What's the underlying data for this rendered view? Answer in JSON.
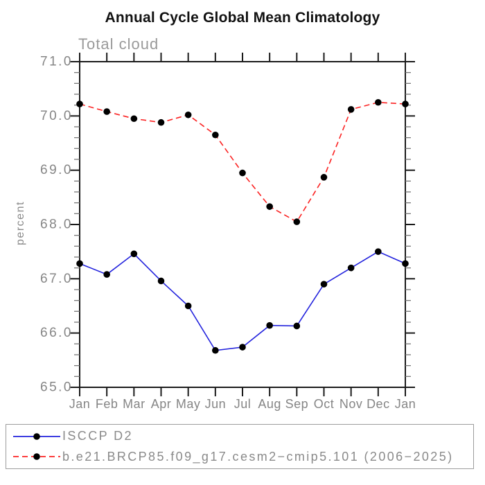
{
  "title": "Annual Cycle Global Mean Climatology",
  "subtitle": "Total cloud",
  "colors": {
    "axis": "#1a1a1a",
    "minor_tick": "#777777",
    "axis_label_gray": "#858585",
    "subtitle_gray": "#9a9a9a",
    "legend_border": "#9c9c9c",
    "marker": "#000000",
    "series1_blue": "#2222dd",
    "series2_red": "#fb2222"
  },
  "chart_data": {
    "type": "line",
    "title": "Annual Cycle Global Mean Climatology",
    "subtitle": "Total cloud",
    "xlabel": "",
    "ylabel": "percent",
    "categories": [
      "Jan",
      "Feb",
      "Mar",
      "Apr",
      "May",
      "Jun",
      "Jul",
      "Aug",
      "Sep",
      "Oct",
      "Nov",
      "Dec",
      "Jan"
    ],
    "ylim": [
      65.0,
      71.0
    ],
    "ytick_step": 1.0,
    "yminor_step": 0.2,
    "ytick_format_decimals": 1,
    "grid": false,
    "legend_position": "bottom",
    "series": [
      {
        "name": "ISCCP D2",
        "color": "#2222dd",
        "style": "solid",
        "marker": "filled-circle",
        "values": [
          67.28,
          67.08,
          67.46,
          66.96,
          66.5,
          65.68,
          65.74,
          66.14,
          66.13,
          66.9,
          67.2,
          67.5,
          67.28
        ]
      },
      {
        "name": "b.e21.BRCP85.f09_g17.cesm2−cmip5.101 (2006−2025)",
        "color": "#fb2222",
        "style": "dashed",
        "marker": "filled-circle",
        "values": [
          70.22,
          70.08,
          69.95,
          69.88,
          70.02,
          69.65,
          68.95,
          68.33,
          68.05,
          68.87,
          70.12,
          70.25,
          70.22
        ]
      }
    ]
  }
}
